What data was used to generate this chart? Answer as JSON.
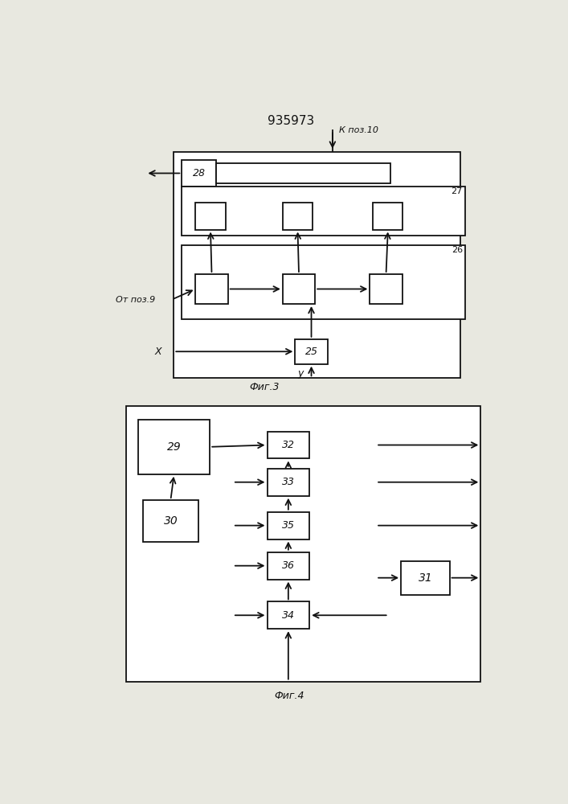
{
  "title": "935973",
  "fig3_label": "Фиг.3",
  "fig4_label": "Фиг.4",
  "k_poz10_label": "К поз.10",
  "ot_poz9_label": "От поз.9",
  "x_label": "X",
  "y_label": "y",
  "bg_color": "#e8e8e0",
  "line_color": "#111111",
  "box_color": "#ffffff"
}
